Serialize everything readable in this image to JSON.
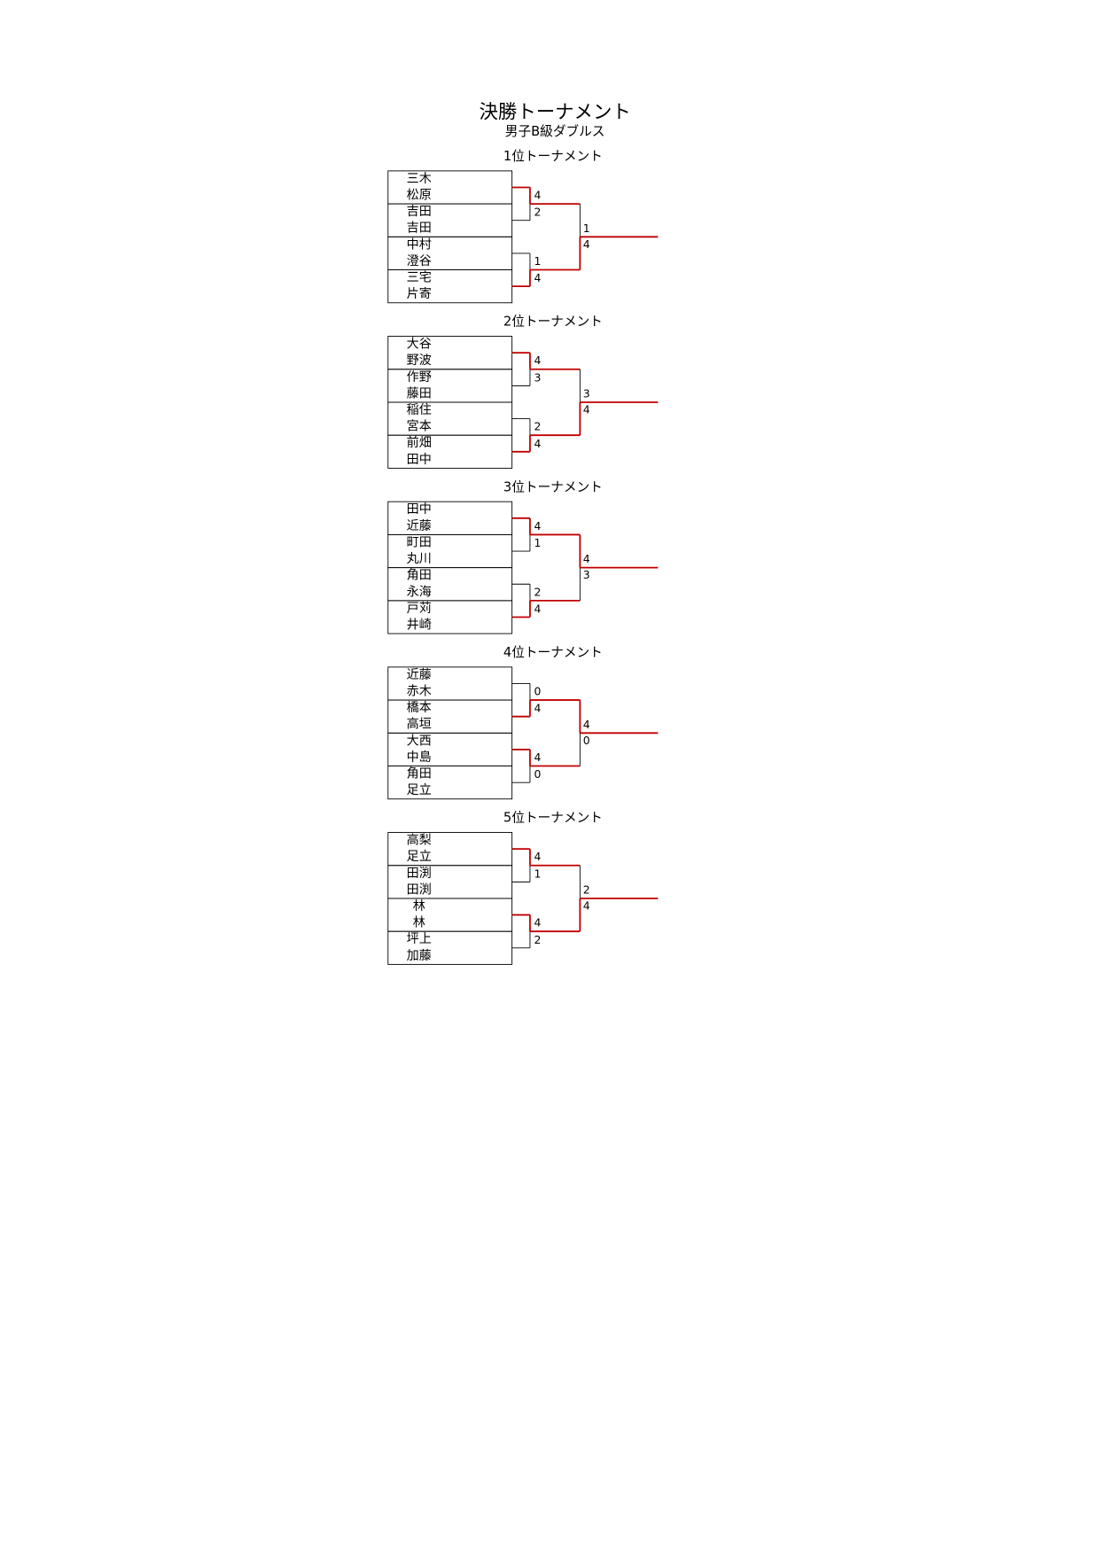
{
  "title": "決勝トーナメント",
  "subtitle": "男子B級ダブルス",
  "brackets": [
    {
      "title": "1位トーナメント",
      "teams": [
        [
          "三木",
          "松原"
        ],
        [
          "吉田",
          "吉田"
        ],
        [
          "中村",
          "澄谷"
        ],
        [
          "三宅",
          "片寄"
        ]
      ],
      "round1": [
        [
          4,
          2
        ],
        [
          1,
          4
        ]
      ],
      "final": [
        1,
        4
      ]
    },
    {
      "title": "2位トーナメント",
      "teams": [
        [
          "大谷",
          "野波"
        ],
        [
          "作野",
          "藤田"
        ],
        [
          "稲住",
          "宮本"
        ],
        [
          "前畑",
          "田中"
        ]
      ],
      "round1": [
        [
          4,
          3
        ],
        [
          2,
          4
        ]
      ],
      "final": [
        3,
        4
      ]
    },
    {
      "title": "3位トーナメント",
      "teams": [
        [
          "田中",
          "近藤"
        ],
        [
          "町田",
          "丸川"
        ],
        [
          "角田",
          "永海"
        ],
        [
          "戸苅",
          "井崎"
        ]
      ],
      "round1": [
        [
          4,
          1
        ],
        [
          2,
          4
        ]
      ],
      "final": [
        4,
        3
      ]
    },
    {
      "title": "4位トーナメント",
      "teams": [
        [
          "近藤",
          "赤木"
        ],
        [
          "橋本",
          "高垣"
        ],
        [
          "大西",
          "中島"
        ],
        [
          "角田",
          "足立"
        ]
      ],
      "round1": [
        [
          0,
          4
        ],
        [
          4,
          0
        ]
      ],
      "final": [
        4,
        0
      ]
    },
    {
      "title": "5位トーナメント",
      "teams": [
        [
          "高梨",
          "足立"
        ],
        [
          "田渕",
          "田渕"
        ],
        [
          "林",
          "林"
        ],
        [
          "坪上",
          "加藤"
        ]
      ],
      "round1": [
        [
          4,
          1
        ],
        [
          4,
          2
        ]
      ],
      "final": [
        2,
        4
      ]
    }
  ]
}
